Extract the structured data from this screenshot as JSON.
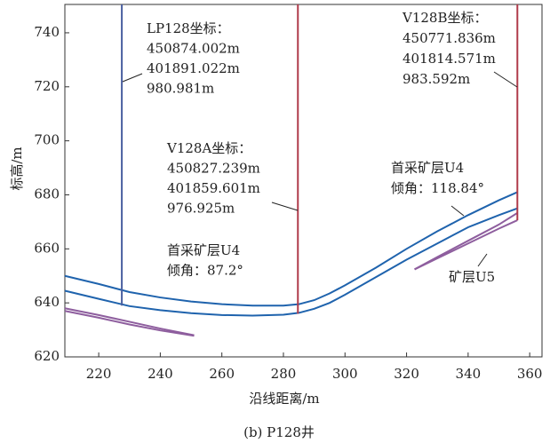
{
  "chart_data": {
    "type": "line",
    "caption": "(b) P128井",
    "xlabel": "沿线距离/m",
    "ylabel": "标高/m",
    "xlim": [
      209,
      364
    ],
    "ylim": [
      620,
      750.5
    ],
    "xticks": [
      220,
      240,
      260,
      280,
      300,
      320,
      340,
      360
    ],
    "yticks": [
      620,
      640,
      660,
      680,
      700,
      720,
      740
    ],
    "series": [
      {
        "color": "#1f63ad",
        "x": [
          209,
          220,
          230,
          240,
          250,
          260,
          270,
          280,
          285,
          290,
          295,
          300,
          310,
          320,
          330,
          340,
          350,
          356
        ],
        "values": [
          650,
          647,
          644,
          642,
          640.5,
          639.5,
          639,
          639,
          639.5,
          641,
          643.5,
          646.5,
          653,
          660,
          666.5,
          672.5,
          678,
          681
        ]
      },
      {
        "color": "#1f63ad",
        "x": [
          209,
          220,
          230,
          240,
          250,
          260,
          270,
          280,
          285,
          290,
          295,
          300,
          310,
          320,
          330,
          340,
          350,
          356
        ],
        "values": [
          644.5,
          641.5,
          638.8,
          637.3,
          636.2,
          635.5,
          635.3,
          635.6,
          636.3,
          637.8,
          640,
          643,
          649.5,
          656,
          662,
          668,
          672.5,
          675
        ]
      },
      {
        "color": "#8e5e9e",
        "x": [
          209,
          220,
          230,
          240,
          251
        ],
        "values": [
          638,
          635.5,
          633,
          630.5,
          628
        ]
      },
      {
        "color": "#8e5e9e",
        "x": [
          209,
          220,
          230,
          240,
          251
        ],
        "values": [
          637,
          634.5,
          632,
          629.8,
          627.8
        ]
      },
      {
        "color": "#8e5e9e",
        "x": [
          322.6,
          330,
          340,
          350,
          356
        ],
        "values": [
          652.4,
          656.5,
          662,
          667.5,
          670.6
        ]
      },
      {
        "color": "#8e5e9e",
        "x": [
          322.6,
          330,
          340,
          350,
          356
        ],
        "values": [
          652.4,
          657,
          663,
          669,
          673.3
        ]
      },
      {
        "color": "#4a5fa0",
        "x": [
          227.5,
          227.5
        ],
        "values": [
          750.5,
          639
        ]
      },
      {
        "color": "#b03a4a",
        "x": [
          284.7,
          284.7
        ],
        "values": [
          750.5,
          636
        ]
      },
      {
        "color": "#b03a4a",
        "x": [
          356,
          356
        ],
        "values": [
          750.5,
          670.6
        ]
      }
    ],
    "annotations": [
      {
        "lines": [
          "LP128坐标：",
          "450874.002m",
          "401891.022m",
          "980.981m"
        ]
      },
      {
        "lines": [
          "V128B坐标：",
          "450771.836m",
          "401814.571m",
          "983.592m"
        ]
      },
      {
        "lines": [
          "V128A坐标：",
          "450827.239m",
          "401859.601m",
          "976.925m"
        ]
      },
      {
        "lines": [
          "首采矿层U4",
          "倾角：87.2°"
        ]
      },
      {
        "lines": [
          "首采矿层U4",
          "倾角：118.84°"
        ]
      },
      {
        "lines": [
          "矿层U5"
        ]
      }
    ]
  }
}
